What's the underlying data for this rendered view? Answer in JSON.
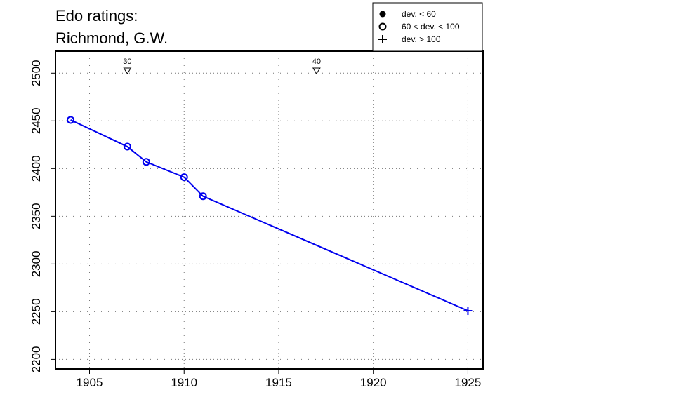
{
  "chart_data": {
    "type": "line",
    "title_lines": [
      "Edo ratings:",
      "Richmond, G.W."
    ],
    "xlabel": "",
    "ylabel": "",
    "xlim": [
      1903.2,
      1925.8
    ],
    "ylim": [
      2190,
      2523
    ],
    "x_ticks": [
      1905,
      1910,
      1915,
      1920,
      1925
    ],
    "y_ticks": [
      2200,
      2250,
      2300,
      2350,
      2400,
      2450,
      2500
    ],
    "grid": true,
    "legend_position": "top-right",
    "legend": [
      {
        "symbol": "filled-circle",
        "label": "dev. < 60"
      },
      {
        "symbol": "open-circle",
        "label": "60 < dev. < 100"
      },
      {
        "symbol": "plus",
        "label": "dev. > 100"
      }
    ],
    "series": [
      {
        "color": "#0000ee",
        "points": [
          {
            "x": 1904,
            "y": 2451,
            "symbol": "open-circle"
          },
          {
            "x": 1907,
            "y": 2423,
            "symbol": "open-circle"
          },
          {
            "x": 1908,
            "y": 2407,
            "symbol": "open-circle"
          },
          {
            "x": 1910,
            "y": 2391,
            "symbol": "open-circle"
          },
          {
            "x": 1911,
            "y": 2371,
            "symbol": "open-circle"
          },
          {
            "x": 1925,
            "y": 2251,
            "symbol": "plus"
          }
        ]
      }
    ],
    "age_markers": [
      {
        "x": 1907,
        "label": "30"
      },
      {
        "x": 1917,
        "label": "40"
      }
    ]
  }
}
